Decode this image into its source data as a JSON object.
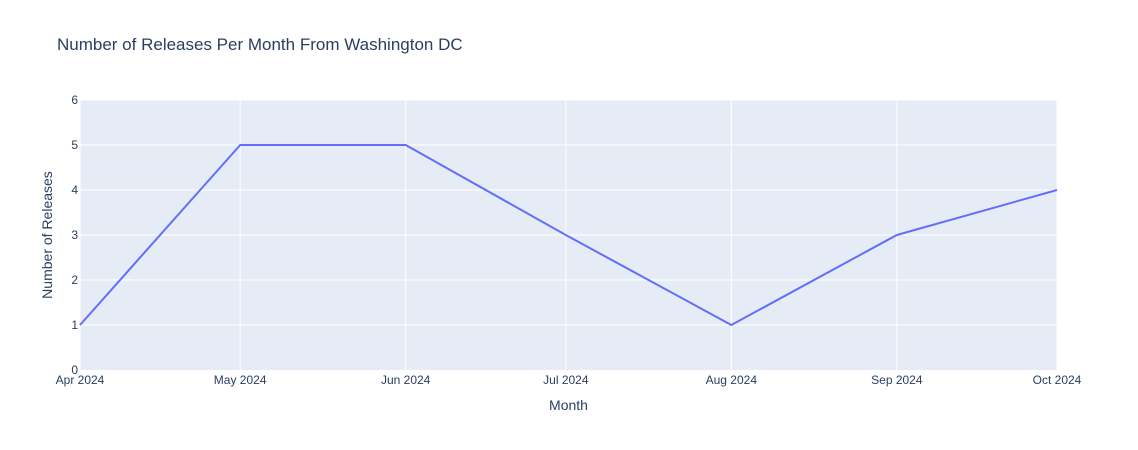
{
  "chart_data": {
    "type": "line",
    "title": "Number of Releases Per Month From Washington DC",
    "xlabel": "Month",
    "ylabel": "Number of Releases",
    "x": [
      "Apr 2024",
      "May 2024",
      "Jun 2024",
      "Jul 2024",
      "Aug 2024",
      "Sep 2024",
      "Oct 2024"
    ],
    "series": [
      {
        "values": [
          1,
          5,
          5,
          3,
          1,
          3,
          4
        ]
      }
    ],
    "ylim": [
      0,
      6
    ],
    "yticks": [
      "0",
      "1",
      "2",
      "3",
      "4",
      "5",
      "6"
    ],
    "grid": true,
    "colors": {
      "line": "#636efa",
      "plot_bg": "#e5ecf6",
      "grid": "#ffffff",
      "text": "#2a3f5f"
    }
  }
}
